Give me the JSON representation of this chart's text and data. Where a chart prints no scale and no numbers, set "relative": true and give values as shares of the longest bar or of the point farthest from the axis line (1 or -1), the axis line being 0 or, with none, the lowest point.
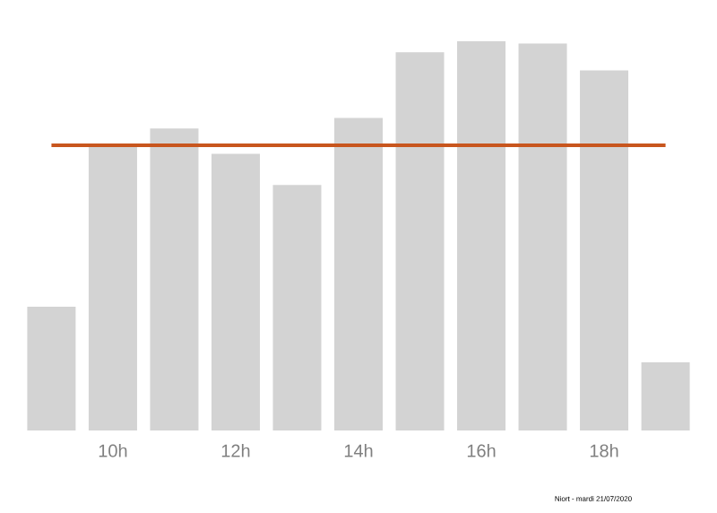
{
  "chart_data": {
    "type": "bar",
    "relative": true,
    "categories": [
      null,
      "10h",
      null,
      "12h",
      null,
      "14h",
      null,
      "16h",
      null,
      "18h",
      null
    ],
    "values": [
      0.318,
      0.733,
      0.776,
      0.711,
      0.631,
      0.803,
      0.972,
      1,
      0.994,
      0.925,
      0.175
    ],
    "color": "#d3d3d3",
    "ref_lines": [
      {
        "axis": "y",
        "value": 0.733,
        "color": "#c8561e"
      }
    ],
    "annotations": [
      "Niort - mardi 21/07/2020"
    ]
  }
}
